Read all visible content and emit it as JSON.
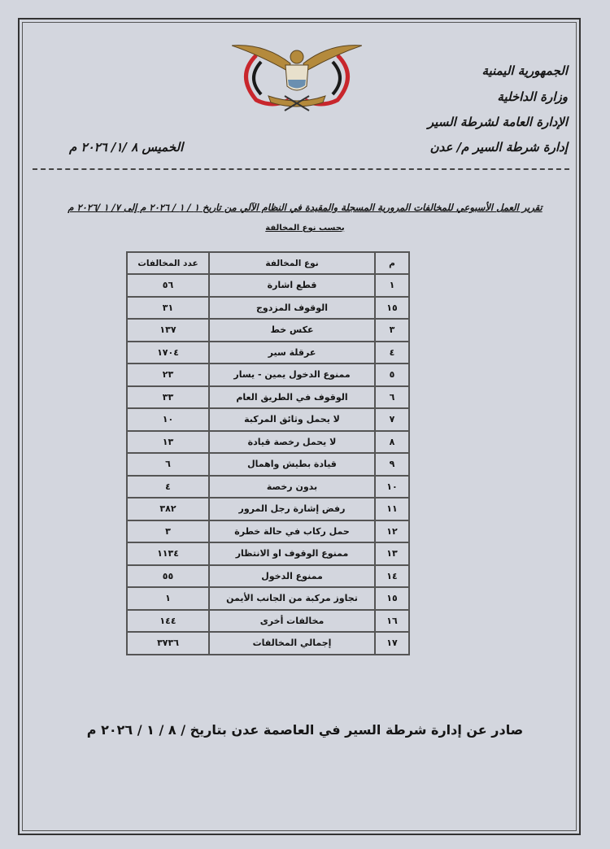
{
  "header": {
    "line1": "الجمهورية اليمنية",
    "line2": "وزارة الداخلية",
    "line3": "الإدارة العامة لشرطة السير",
    "line4": "إدارة شرطة السير م/ عدن",
    "date": "الخميس ٨ /١/ ٢٠٢٦ م"
  },
  "emblem": {
    "name": "yemen-eagle-emblem",
    "colors": [
      "#c8262c",
      "#1a1a1a",
      "#b48a3c"
    ]
  },
  "report": {
    "title": "تقرير العمل الأسبوعي للمخالفات المرورية المسجلة والمقيدة في النظام الآلي من تاريخ ١ / ١ / ٢٠٢٦ م إلى ٧/ ١ /٢٠٢٦ م",
    "subtitle": "بحسب نوع المخالفة"
  },
  "table": {
    "headers": [
      "م",
      "نوع المخالفة",
      "عدد المخالفات"
    ],
    "rows": [
      [
        "١",
        "قطع اشارة",
        "٥٦"
      ],
      [
        "١٥",
        "الوقوف المزدوج",
        "٣١"
      ],
      [
        "٣",
        "عكس خط",
        "١٣٧"
      ],
      [
        "٤",
        "عرقلة سير",
        "١٧٠٤"
      ],
      [
        "٥",
        "ممنوع الدخول يمين - يسار",
        "٢٣"
      ],
      [
        "٦",
        "الوقوف في الطريق العام",
        "٣٣"
      ],
      [
        "٧",
        "لا يحمل وثائق المركبة",
        "١٠"
      ],
      [
        "٨",
        "لا يحمل رخصة قيادة",
        "١٣"
      ],
      [
        "٩",
        "قيادة بطيش واهمال",
        "٦"
      ],
      [
        "١٠",
        "بدون رخصة",
        "٤"
      ],
      [
        "١١",
        "رفض إشارة رجل المرور",
        "٣٨٢"
      ],
      [
        "١٢",
        "حمل ركاب في حالة خطرة",
        "٣"
      ],
      [
        "١٣",
        "ممنوع الوقوف او الانتظار",
        "١١٣٤"
      ],
      [
        "١٤",
        "ممنوع الدخول",
        "٥٥"
      ],
      [
        "١٥",
        "تجاوز مركبة من الجانب الأيمن",
        "١"
      ],
      [
        "١٦",
        "مخالفات أخرى",
        "١٤٤"
      ],
      [
        "١٧",
        "إجمالي المخالفات",
        "٣٧٣٦"
      ]
    ]
  },
  "footer": "صادر عن إدارة شرطة السير في العاصمة عدن بتاريخ / ٨ / ١ / ٢٠٢٦ م"
}
